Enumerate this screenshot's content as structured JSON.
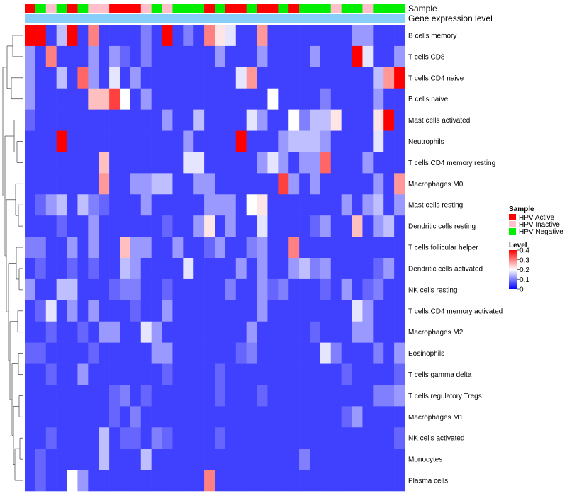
{
  "chart_data": {
    "type": "heatmap",
    "rows": [
      "B cells memory",
      "T cells CD8",
      "T cells CD4 naive",
      "B cells naive",
      "Mast cells activated",
      "Neutrophils",
      "T cells CD4 memory resting",
      "Macrophages M0",
      "Mast cells resting",
      "Dendritic cells resting",
      "T cells follicular helper",
      "Dendritic cells activated",
      "NK cells resting",
      "T cells CD4 memory activated",
      "Macrophages M2",
      "Eosinophils",
      "T cells gamma delta",
      "T cells regulatory  Tregs",
      "Macrophages M1",
      "NK cells activated",
      "Monocytes",
      "Plasma cells"
    ],
    "column_annotations": {
      "labels": [
        "Sample",
        "Gene expression level"
      ],
      "sample": [
        "HPV Active",
        "HPV Negative",
        "HPV Inactive",
        "HPV Negative",
        "HPV Active",
        "HPV Negative",
        "HPV Inactive",
        "HPV Inactive",
        "HPV Active",
        "HPV Active",
        "HPV Active",
        "HPV Inactive",
        "HPV Negative",
        "HPV Inactive",
        "HPV Negative",
        "HPV Negative",
        "HPV Negative",
        "HPV Active",
        "HPV Negative",
        "HPV Active",
        "HPV Active",
        "HPV Negative",
        "HPV Active",
        "HPV Active",
        "HPV Negative",
        "HPV Active",
        "HPV Negative",
        "HPV Negative",
        "HPV Negative",
        "HPV Inactive",
        "HPV Negative",
        "HPV Negative",
        "HPV Inactive",
        "HPV Negative",
        "HPV Negative",
        "HPV Negative"
      ],
      "sample_colors": {
        "HPV Active": "#ff0000",
        "HPV Inactive": "#ffc0cb",
        "HPV Negative": "#00ee00"
      },
      "gene_expression_color": "#87cefa"
    },
    "values": [
      [
        0.4,
        0.4,
        0.05,
        0.15,
        0.4,
        0.05,
        0.3,
        0.05,
        0.05,
        0.05,
        0.05,
        0.1,
        0.05,
        0.4,
        0.05,
        0.1,
        0.05,
        0.3,
        0.22,
        0.18,
        0.05,
        0.05,
        0.28,
        0.05,
        0.05,
        0.05,
        0.05,
        0.05,
        0.05,
        0.05,
        0.05,
        0.12,
        0.12,
        0.05,
        0.05,
        0.05
      ],
      [
        0.12,
        0.05,
        0.3,
        0.05,
        0.05,
        0.05,
        0.12,
        0.05,
        0.12,
        0.08,
        0.05,
        0.1,
        0.05,
        0.05,
        0.05,
        0.05,
        0.05,
        0.05,
        0.12,
        0.05,
        0.05,
        0.05,
        0.12,
        0.05,
        0.05,
        0.05,
        0.05,
        0.12,
        0.05,
        0.05,
        0.05,
        0.4,
        0.18,
        0.05,
        0.05,
        0.12
      ],
      [
        0.12,
        0.05,
        0.05,
        0.15,
        0.05,
        0.32,
        0.12,
        0.05,
        0.18,
        0.05,
        0.12,
        0.05,
        0.05,
        0.05,
        0.05,
        0.05,
        0.05,
        0.05,
        0.05,
        0.05,
        0.18,
        0.28,
        0.05,
        0.05,
        0.05,
        0.05,
        0.05,
        0.05,
        0.05,
        0.05,
        0.05,
        0.05,
        0.05,
        0.15,
        0.28,
        0.4
      ],
      [
        0.12,
        0.05,
        0.05,
        0.05,
        0.05,
        0.05,
        0.25,
        0.25,
        0.35,
        0.2,
        0.05,
        0.12,
        0.05,
        0.05,
        0.05,
        0.05,
        0.05,
        0.05,
        0.05,
        0.05,
        0.05,
        0.05,
        0.05,
        0.2,
        0.05,
        0.05,
        0.05,
        0.05,
        0.1,
        0.05,
        0.05,
        0.05,
        0.05,
        0.12,
        0.05,
        0.05
      ],
      [
        0.08,
        0.05,
        0.05,
        0.05,
        0.05,
        0.05,
        0.05,
        0.05,
        0.05,
        0.05,
        0.05,
        0.05,
        0.05,
        0.12,
        0.05,
        0.05,
        0.15,
        0.05,
        0.05,
        0.05,
        0.05,
        0.18,
        0.12,
        0.05,
        0.05,
        0.2,
        0.1,
        0.15,
        0.15,
        0.22,
        0.05,
        0.05,
        0.05,
        0.22,
        0.4,
        0.05
      ],
      [
        0.05,
        0.05,
        0.05,
        0.4,
        0.05,
        0.05,
        0.05,
        0.05,
        0.05,
        0.05,
        0.05,
        0.05,
        0.05,
        0.05,
        0.05,
        0.12,
        0.05,
        0.05,
        0.05,
        0.05,
        0.4,
        0.05,
        0.05,
        0.05,
        0.12,
        0.15,
        0.15,
        0.15,
        0.12,
        0.05,
        0.05,
        0.05,
        0.05,
        0.18,
        0.05,
        0.05
      ],
      [
        0.05,
        0.05,
        0.05,
        0.05,
        0.05,
        0.05,
        0.05,
        0.25,
        0.05,
        0.05,
        0.05,
        0.05,
        0.05,
        0.05,
        0.05,
        0.18,
        0.18,
        0.05,
        0.05,
        0.05,
        0.05,
        0.05,
        0.12,
        0.18,
        0.12,
        0.05,
        0.12,
        0.12,
        0.32,
        0.05,
        0.05,
        0.05,
        0.12,
        0.05,
        0.05,
        0.05
      ],
      [
        0.05,
        0.05,
        0.05,
        0.05,
        0.05,
        0.05,
        0.05,
        0.28,
        0.05,
        0.05,
        0.12,
        0.12,
        0.15,
        0.15,
        0.05,
        0.05,
        0.12,
        0.12,
        0.05,
        0.05,
        0.05,
        0.05,
        0.05,
        0.05,
        0.35,
        0.12,
        0.05,
        0.12,
        0.05,
        0.05,
        0.05,
        0.05,
        0.05,
        0.12,
        0.05,
        0.28
      ],
      [
        0.05,
        0.08,
        0.12,
        0.15,
        0.05,
        0.15,
        0.1,
        0.08,
        0.05,
        0.05,
        0.05,
        0.12,
        0.05,
        0.05,
        0.05,
        0.05,
        0.05,
        0.12,
        0.12,
        0.12,
        0.05,
        0.2,
        0.22,
        0.05,
        0.05,
        0.05,
        0.05,
        0.05,
        0.05,
        0.05,
        0.12,
        0.05,
        0.12,
        0.15,
        0.05,
        0.12
      ],
      [
        0.05,
        0.05,
        0.05,
        0.08,
        0.05,
        0.05,
        0.12,
        0.05,
        0.05,
        0.05,
        0.05,
        0.05,
        0.05,
        0.08,
        0.05,
        0.05,
        0.12,
        0.22,
        0.05,
        0.12,
        0.05,
        0.05,
        0.18,
        0.05,
        0.05,
        0.05,
        0.05,
        0.08,
        0.12,
        0.05,
        0.05,
        0.25,
        0.05,
        0.12,
        0.15,
        0.05
      ],
      [
        0.1,
        0.1,
        0.05,
        0.05,
        0.12,
        0.05,
        0.12,
        0.05,
        0.05,
        0.25,
        0.12,
        0.12,
        0.05,
        0.05,
        0.12,
        0.05,
        0.05,
        0.08,
        0.12,
        0.05,
        0.05,
        0.1,
        0.12,
        0.05,
        0.05,
        0.3,
        0.05,
        0.05,
        0.05,
        0.05,
        0.05,
        0.05,
        0.05,
        0.05,
        0.05,
        0.05
      ],
      [
        0.05,
        0.08,
        0.05,
        0.05,
        0.08,
        0.05,
        0.08,
        0.05,
        0.05,
        0.15,
        0.12,
        0.05,
        0.05,
        0.05,
        0.05,
        0.18,
        0.05,
        0.05,
        0.05,
        0.05,
        0.12,
        0.05,
        0.12,
        0.05,
        0.05,
        0.12,
        0.15,
        0.1,
        0.12,
        0.05,
        0.05,
        0.05,
        0.05,
        0.08,
        0.12,
        0.05
      ],
      [
        0.12,
        0.05,
        0.05,
        0.15,
        0.15,
        0.05,
        0.05,
        0.05,
        0.08,
        0.1,
        0.1,
        0.05,
        0.05,
        0.08,
        0.05,
        0.05,
        0.05,
        0.05,
        0.05,
        0.1,
        0.05,
        0.05,
        0.12,
        0.08,
        0.1,
        0.05,
        0.05,
        0.05,
        0.08,
        0.05,
        0.12,
        0.05,
        0.08,
        0.1,
        0.05,
        0.05
      ],
      [
        0.05,
        0.08,
        0.18,
        0.05,
        0.12,
        0.05,
        0.12,
        0.05,
        0.05,
        0.05,
        0.08,
        0.05,
        0.05,
        0.12,
        0.05,
        0.05,
        0.05,
        0.05,
        0.05,
        0.05,
        0.05,
        0.05,
        0.12,
        0.05,
        0.05,
        0.05,
        0.05,
        0.05,
        0.05,
        0.05,
        0.05,
        0.18,
        0.12,
        0.05,
        0.05,
        0.05
      ],
      [
        0.05,
        0.05,
        0.08,
        0.05,
        0.05,
        0.08,
        0.05,
        0.12,
        0.12,
        0.05,
        0.05,
        0.18,
        0.12,
        0.05,
        0.05,
        0.05,
        0.05,
        0.05,
        0.05,
        0.05,
        0.05,
        0.12,
        0.05,
        0.05,
        0.05,
        0.05,
        0.05,
        0.08,
        0.05,
        0.05,
        0.05,
        0.12,
        0.12,
        0.05,
        0.05,
        0.05
      ],
      [
        0.08,
        0.08,
        0.05,
        0.05,
        0.05,
        0.05,
        0.08,
        0.05,
        0.05,
        0.05,
        0.05,
        0.05,
        0.12,
        0.12,
        0.05,
        0.05,
        0.05,
        0.05,
        0.05,
        0.05,
        0.08,
        0.1,
        0.05,
        0.05,
        0.05,
        0.05,
        0.05,
        0.05,
        0.18,
        0.1,
        0.05,
        0.05,
        0.05,
        0.1,
        0.05,
        0.12
      ],
      [
        0.05,
        0.05,
        0.08,
        0.05,
        0.05,
        0.12,
        0.05,
        0.05,
        0.05,
        0.05,
        0.05,
        0.05,
        0.05,
        0.08,
        0.05,
        0.05,
        0.05,
        0.05,
        0.08,
        0.05,
        0.05,
        0.05,
        0.05,
        0.05,
        0.05,
        0.05,
        0.05,
        0.05,
        0.05,
        0.05,
        0.08,
        0.05,
        0.05,
        0.05,
        0.05,
        0.08
      ],
      [
        0.05,
        0.05,
        0.05,
        0.05,
        0.05,
        0.05,
        0.05,
        0.05,
        0.08,
        0.1,
        0.05,
        0.08,
        0.05,
        0.05,
        0.05,
        0.05,
        0.05,
        0.05,
        0.08,
        0.05,
        0.05,
        0.05,
        0.08,
        0.05,
        0.05,
        0.05,
        0.05,
        0.05,
        0.05,
        0.05,
        0.05,
        0.05,
        0.05,
        0.1,
        0.1,
        0.12
      ],
      [
        0.05,
        0.05,
        0.05,
        0.05,
        0.05,
        0.05,
        0.05,
        0.05,
        0.08,
        0.05,
        0.1,
        0.05,
        0.05,
        0.05,
        0.05,
        0.05,
        0.05,
        0.05,
        0.05,
        0.05,
        0.05,
        0.05,
        0.05,
        0.05,
        0.05,
        0.05,
        0.05,
        0.05,
        0.05,
        0.05,
        0.08,
        0.12,
        0.05,
        0.05,
        0.05,
        0.05
      ],
      [
        0.05,
        0.05,
        0.08,
        0.05,
        0.05,
        0.05,
        0.05,
        0.15,
        0.05,
        0.08,
        0.08,
        0.05,
        0.1,
        0.08,
        0.05,
        0.05,
        0.05,
        0.05,
        0.08,
        0.05,
        0.05,
        0.05,
        0.05,
        0.05,
        0.05,
        0.05,
        0.05,
        0.05,
        0.05,
        0.05,
        0.05,
        0.05,
        0.05,
        0.05,
        0.05,
        0.08
      ],
      [
        0.05,
        0.08,
        0.05,
        0.05,
        0.05,
        0.05,
        0.05,
        0.15,
        0.05,
        0.05,
        0.05,
        0.15,
        0.05,
        0.05,
        0.05,
        0.05,
        0.05,
        0.05,
        0.05,
        0.05,
        0.05,
        0.05,
        0.05,
        0.05,
        0.05,
        0.05,
        0.1,
        0.05,
        0.05,
        0.05,
        0.05,
        0.05,
        0.05,
        0.05,
        0.05,
        0.05
      ],
      [
        0.05,
        0.08,
        0.05,
        0.05,
        0.2,
        0.12,
        0.05,
        0.05,
        0.05,
        0.05,
        0.05,
        0.05,
        0.05,
        0.05,
        0.05,
        0.05,
        0.05,
        0.3,
        0.05,
        0.05,
        0.05,
        0.05,
        0.05,
        0.05,
        0.05,
        0.05,
        0.05,
        0.05,
        0.05,
        0.05,
        0.05,
        0.05,
        0.05,
        0.05,
        0.05,
        0.05
      ]
    ],
    "legend": {
      "sample_title": "Sample",
      "sample_entries": [
        {
          "label": "HPV Active",
          "color": "#ff0000"
        },
        {
          "label": "HPV Inactive",
          "color": "#ffc0cb"
        },
        {
          "label": "HPV Negative",
          "color": "#00ee00"
        }
      ],
      "level_title": "Level",
      "level_ticks": [
        "0.4",
        "0.3",
        "0.2",
        "0.1",
        "0"
      ],
      "level_range": [
        0,
        0.4
      ],
      "placement": "right"
    },
    "color_scale": {
      "low": "#0000ff",
      "mid": "#ffffff",
      "high": "#ff0000",
      "mid_value": 0.2
    },
    "row_dendrogram": true
  }
}
